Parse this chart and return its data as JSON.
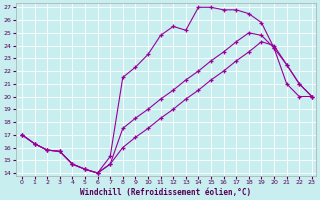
{
  "xlabel": "Windchill (Refroidissement éolien,°C)",
  "xlim": [
    -0.5,
    23.3
  ],
  "ylim": [
    13.8,
    27.3
  ],
  "xticks": [
    0,
    1,
    2,
    3,
    4,
    5,
    6,
    7,
    8,
    9,
    10,
    11,
    12,
    13,
    14,
    15,
    16,
    17,
    18,
    19,
    20,
    21,
    22,
    23
  ],
  "yticks": [
    14,
    15,
    16,
    17,
    18,
    19,
    20,
    21,
    22,
    23,
    24,
    25,
    26,
    27
  ],
  "bg_color": "#c8eef0",
  "line_color": "#990099",
  "line1_x": [
    0,
    1,
    2,
    3,
    4,
    5,
    6,
    7,
    8,
    9,
    10,
    11,
    12,
    13,
    14,
    15,
    16,
    17,
    18,
    19,
    20,
    21,
    22,
    23
  ],
  "line1_y": [
    17.0,
    16.3,
    15.8,
    15.7,
    14.7,
    14.3,
    14.0,
    15.3,
    21.5,
    22.3,
    23.3,
    24.8,
    25.5,
    25.2,
    27.0,
    27.0,
    26.8,
    26.8,
    26.5,
    25.8,
    23.8,
    21.0,
    20.0,
    20.0
  ],
  "line2_x": [
    0,
    1,
    2,
    3,
    4,
    5,
    6,
    7,
    8,
    9,
    10,
    11,
    12,
    13,
    14,
    15,
    16,
    17,
    18,
    19,
    20,
    21,
    22,
    23
  ],
  "line2_y": [
    17.0,
    16.3,
    15.8,
    15.7,
    14.7,
    14.3,
    14.0,
    14.7,
    17.5,
    18.3,
    19.0,
    19.8,
    20.5,
    21.3,
    22.0,
    22.8,
    23.5,
    24.3,
    25.0,
    24.8,
    23.8,
    22.5,
    21.0,
    20.0
  ],
  "line3_x": [
    0,
    1,
    2,
    3,
    4,
    5,
    6,
    7,
    8,
    9,
    10,
    11,
    12,
    13,
    14,
    15,
    16,
    17,
    18,
    19,
    20,
    21,
    22,
    23
  ],
  "line3_y": [
    17.0,
    16.3,
    15.8,
    15.7,
    14.7,
    14.3,
    14.0,
    14.7,
    16.0,
    16.8,
    17.5,
    18.3,
    19.0,
    19.8,
    20.5,
    21.3,
    22.0,
    22.8,
    23.5,
    24.3,
    24.0,
    22.5,
    21.0,
    20.0
  ]
}
